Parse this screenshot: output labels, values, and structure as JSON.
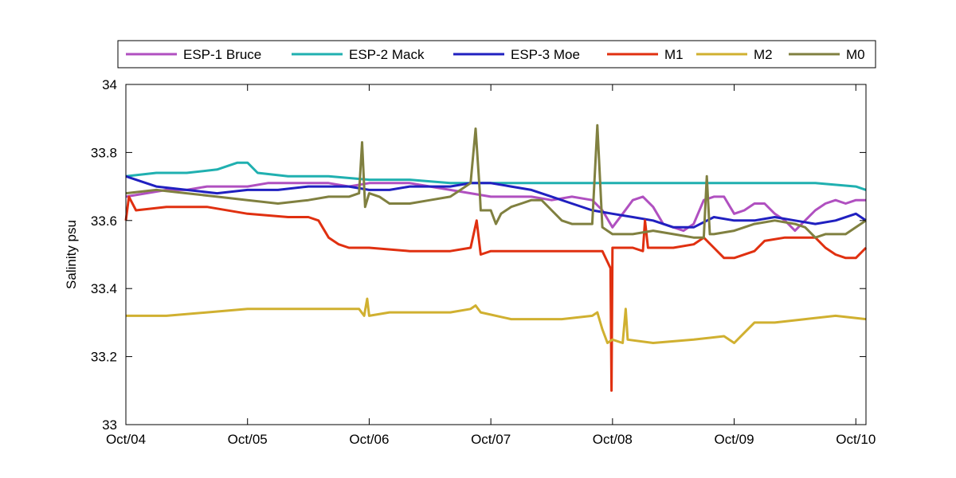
{
  "chart_data": {
    "type": "line",
    "title": "",
    "xlabel": "",
    "ylabel": "Salinity psu",
    "x_unit": "months",
    "xlim": [
      0,
      73
    ],
    "ylim": [
      33,
      34
    ],
    "grid": false,
    "legend_position": "top, horizontal, outside plot",
    "x_ticks": [
      {
        "x": 0,
        "label": "Oct/04"
      },
      {
        "x": 12,
        "label": "Oct/05"
      },
      {
        "x": 24,
        "label": "Oct/06"
      },
      {
        "x": 36,
        "label": "Oct/07"
      },
      {
        "x": 48,
        "label": "Oct/08"
      },
      {
        "x": 60,
        "label": "Oct/09"
      },
      {
        "x": 72,
        "label": "Oct/10"
      }
    ],
    "y_ticks": [
      {
        "y": 33.0,
        "label": "33"
      },
      {
        "y": 33.2,
        "label": "33.2"
      },
      {
        "y": 33.4,
        "label": "33.4"
      },
      {
        "y": 33.6,
        "label": "33.6"
      },
      {
        "y": 33.8,
        "label": "33.8"
      },
      {
        "y": 34.0,
        "label": "34"
      }
    ],
    "series": [
      {
        "name": "ESP-1 Bruce",
        "color": "#b050c0",
        "points": [
          [
            0,
            33.67
          ],
          [
            2,
            33.68
          ],
          [
            4,
            33.69
          ],
          [
            6,
            33.69
          ],
          [
            8,
            33.7
          ],
          [
            10,
            33.7
          ],
          [
            12,
            33.7
          ],
          [
            14,
            33.71
          ],
          [
            16,
            33.71
          ],
          [
            18,
            33.71
          ],
          [
            20,
            33.71
          ],
          [
            22,
            33.7
          ],
          [
            24,
            33.71
          ],
          [
            26,
            33.71
          ],
          [
            28,
            33.71
          ],
          [
            30,
            33.7
          ],
          [
            32,
            33.69
          ],
          [
            34,
            33.68
          ],
          [
            36,
            33.67
          ],
          [
            38,
            33.67
          ],
          [
            40,
            33.67
          ],
          [
            42,
            33.66
          ],
          [
            44,
            33.67
          ],
          [
            46,
            33.66
          ],
          [
            47,
            33.63
          ],
          [
            48,
            33.58
          ],
          [
            49,
            33.62
          ],
          [
            50,
            33.66
          ],
          [
            51,
            33.67
          ],
          [
            52,
            33.64
          ],
          [
            53,
            33.59
          ],
          [
            54,
            33.58
          ],
          [
            55,
            33.57
          ],
          [
            56,
            33.59
          ],
          [
            57,
            33.66
          ],
          [
            58,
            33.67
          ],
          [
            59,
            33.67
          ],
          [
            60,
            33.62
          ],
          [
            61,
            33.63
          ],
          [
            62,
            33.65
          ],
          [
            63,
            33.65
          ],
          [
            64,
            33.62
          ],
          [
            65,
            33.6
          ],
          [
            66,
            33.57
          ],
          [
            67,
            33.6
          ],
          [
            68,
            33.63
          ],
          [
            69,
            33.65
          ],
          [
            70,
            33.66
          ],
          [
            71,
            33.65
          ],
          [
            72,
            33.66
          ],
          [
            73,
            33.66
          ]
        ]
      },
      {
        "name": "ESP-2 Mack",
        "color": "#20b0b0",
        "points": [
          [
            0,
            33.73
          ],
          [
            3,
            33.74
          ],
          [
            6,
            33.74
          ],
          [
            9,
            33.75
          ],
          [
            11,
            33.77
          ],
          [
            12,
            33.77
          ],
          [
            13,
            33.74
          ],
          [
            16,
            33.73
          ],
          [
            20,
            33.73
          ],
          [
            24,
            33.72
          ],
          [
            28,
            33.72
          ],
          [
            32,
            33.71
          ],
          [
            36,
            33.71
          ],
          [
            40,
            33.71
          ],
          [
            44,
            33.71
          ],
          [
            48,
            33.71
          ],
          [
            52,
            33.71
          ],
          [
            56,
            33.71
          ],
          [
            60,
            33.71
          ],
          [
            64,
            33.71
          ],
          [
            68,
            33.71
          ],
          [
            72,
            33.7
          ],
          [
            73,
            33.69
          ]
        ]
      },
      {
        "name": "ESP-3 Moe",
        "color": "#2020c0",
        "points": [
          [
            0,
            33.73
          ],
          [
            1,
            33.72
          ],
          [
            3,
            33.7
          ],
          [
            6,
            33.69
          ],
          [
            9,
            33.68
          ],
          [
            12,
            33.69
          ],
          [
            15,
            33.69
          ],
          [
            18,
            33.7
          ],
          [
            20,
            33.7
          ],
          [
            22,
            33.7
          ],
          [
            24,
            33.69
          ],
          [
            26,
            33.69
          ],
          [
            28,
            33.7
          ],
          [
            30,
            33.7
          ],
          [
            32,
            33.7
          ],
          [
            34,
            33.71
          ],
          [
            36,
            33.71
          ],
          [
            38,
            33.7
          ],
          [
            40,
            33.69
          ],
          [
            42,
            33.67
          ],
          [
            44,
            33.65
          ],
          [
            46,
            33.63
          ],
          [
            48,
            33.62
          ],
          [
            50,
            33.61
          ],
          [
            52,
            33.6
          ],
          [
            54,
            33.58
          ],
          [
            56,
            33.58
          ],
          [
            58,
            33.61
          ],
          [
            60,
            33.6
          ],
          [
            62,
            33.6
          ],
          [
            64,
            33.61
          ],
          [
            66,
            33.6
          ],
          [
            68,
            33.59
          ],
          [
            70,
            33.6
          ],
          [
            72,
            33.62
          ],
          [
            73,
            33.6
          ]
        ]
      },
      {
        "name": "M1",
        "color": "#e03010",
        "points": [
          [
            0,
            33.6
          ],
          [
            0.3,
            33.67
          ],
          [
            1,
            33.63
          ],
          [
            4,
            33.64
          ],
          [
            8,
            33.64
          ],
          [
            12,
            33.62
          ],
          [
            16,
            33.61
          ],
          [
            18,
            33.61
          ],
          [
            19,
            33.6
          ],
          [
            20,
            33.55
          ],
          [
            21,
            33.53
          ],
          [
            22,
            33.52
          ],
          [
            24,
            33.52
          ],
          [
            28,
            33.51
          ],
          [
            32,
            33.51
          ],
          [
            34,
            33.52
          ],
          [
            34.6,
            33.6
          ],
          [
            35,
            33.5
          ],
          [
            36,
            33.51
          ],
          [
            40,
            33.51
          ],
          [
            44,
            33.51
          ],
          [
            47,
            33.51
          ],
          [
            47.8,
            33.46
          ],
          [
            47.9,
            33.1
          ],
          [
            48,
            33.52
          ],
          [
            50,
            33.52
          ],
          [
            51,
            33.51
          ],
          [
            51.2,
            33.6
          ],
          [
            51.5,
            33.52
          ],
          [
            54,
            33.52
          ],
          [
            56,
            33.53
          ],
          [
            57,
            33.55
          ],
          [
            58,
            33.52
          ],
          [
            59,
            33.49
          ],
          [
            60,
            33.49
          ],
          [
            62,
            33.51
          ],
          [
            63,
            33.54
          ],
          [
            65,
            33.55
          ],
          [
            67,
            33.55
          ],
          [
            68,
            33.55
          ],
          [
            69,
            33.52
          ],
          [
            70,
            33.5
          ],
          [
            71,
            33.49
          ],
          [
            72,
            33.49
          ],
          [
            73,
            33.52
          ]
        ]
      },
      {
        "name": "M2",
        "color": "#d0b030",
        "points": [
          [
            0,
            33.32
          ],
          [
            4,
            33.32
          ],
          [
            8,
            33.33
          ],
          [
            12,
            33.34
          ],
          [
            16,
            33.34
          ],
          [
            20,
            33.34
          ],
          [
            22,
            33.34
          ],
          [
            23,
            33.34
          ],
          [
            23.5,
            33.32
          ],
          [
            23.8,
            33.37
          ],
          [
            24,
            33.32
          ],
          [
            26,
            33.33
          ],
          [
            28,
            33.33
          ],
          [
            30,
            33.33
          ],
          [
            32,
            33.33
          ],
          [
            34,
            33.34
          ],
          [
            34.5,
            33.35
          ],
          [
            35,
            33.33
          ],
          [
            38,
            33.31
          ],
          [
            40,
            33.31
          ],
          [
            43,
            33.31
          ],
          [
            46,
            33.32
          ],
          [
            46.5,
            33.33
          ],
          [
            47,
            33.28
          ],
          [
            47.5,
            33.24
          ],
          [
            48,
            33.25
          ],
          [
            49,
            33.24
          ],
          [
            49.3,
            33.34
          ],
          [
            49.5,
            33.25
          ],
          [
            52,
            33.24
          ],
          [
            56,
            33.25
          ],
          [
            59,
            33.26
          ],
          [
            60,
            33.24
          ],
          [
            61,
            33.27
          ],
          [
            62,
            33.3
          ],
          [
            64,
            33.3
          ],
          [
            67,
            33.31
          ],
          [
            70,
            33.32
          ],
          [
            73,
            33.31
          ]
        ]
      },
      {
        "name": "M0",
        "color": "#808040",
        "points": [
          [
            0,
            33.68
          ],
          [
            3,
            33.69
          ],
          [
            6,
            33.68
          ],
          [
            9,
            33.67
          ],
          [
            12,
            33.66
          ],
          [
            15,
            33.65
          ],
          [
            18,
            33.66
          ],
          [
            20,
            33.67
          ],
          [
            22,
            33.67
          ],
          [
            23,
            33.68
          ],
          [
            23.3,
            33.83
          ],
          [
            23.6,
            33.64
          ],
          [
            24,
            33.68
          ],
          [
            25,
            33.67
          ],
          [
            26,
            33.65
          ],
          [
            28,
            33.65
          ],
          [
            30,
            33.66
          ],
          [
            32,
            33.67
          ],
          [
            33,
            33.69
          ],
          [
            34,
            33.71
          ],
          [
            34.5,
            33.87
          ],
          [
            34.9,
            33.69
          ],
          [
            35,
            33.63
          ],
          [
            36,
            33.63
          ],
          [
            36.5,
            33.59
          ],
          [
            37,
            33.62
          ],
          [
            38,
            33.64
          ],
          [
            39,
            33.65
          ],
          [
            40,
            33.66
          ],
          [
            41,
            33.66
          ],
          [
            42,
            33.63
          ],
          [
            43,
            33.6
          ],
          [
            44,
            33.59
          ],
          [
            45,
            33.59
          ],
          [
            46,
            33.59
          ],
          [
            46.5,
            33.88
          ],
          [
            46.8,
            33.7
          ],
          [
            47,
            33.58
          ],
          [
            47.5,
            33.57
          ],
          [
            48,
            33.56
          ],
          [
            49,
            33.56
          ],
          [
            50,
            33.56
          ],
          [
            52,
            33.57
          ],
          [
            54,
            33.56
          ],
          [
            56,
            33.55
          ],
          [
            57,
            33.55
          ],
          [
            57.3,
            33.73
          ],
          [
            57.6,
            33.56
          ],
          [
            58,
            33.56
          ],
          [
            60,
            33.57
          ],
          [
            62,
            33.59
          ],
          [
            64,
            33.6
          ],
          [
            66,
            33.59
          ],
          [
            67,
            33.58
          ],
          [
            68,
            33.55
          ],
          [
            69,
            33.56
          ],
          [
            70,
            33.56
          ],
          [
            71,
            33.56
          ],
          [
            72,
            33.58
          ],
          [
            73,
            33.6
          ]
        ]
      }
    ]
  }
}
